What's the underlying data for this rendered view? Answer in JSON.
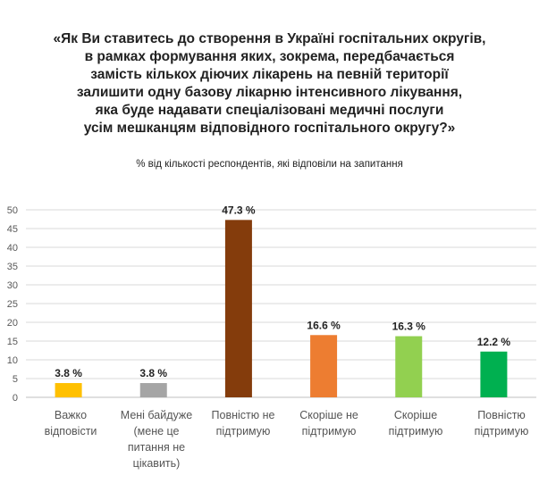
{
  "chart_data": {
    "type": "bar",
    "title_lines": [
      "«Як Ви ставитесь до створення в Україні госпітальних округів,",
      "в рамках формування яких, зокрема, передбачається",
      "замість кількох діючих лікарень на певній території",
      "залишити одну базову лікарню інтенсивного лікування,",
      "яка буде надавати спеціалізовані медичні послуги",
      "усім мешканцям відповідного госпітального округу?»"
    ],
    "subtitle": "% від кількості респондентів, які відповіли на запитання",
    "categories": [
      "Важко відповісти",
      "Мені байдуже (мене це питання не цікавить)",
      "Повністю не підтримую",
      "Скоріше не підтримую",
      "Скоріше підтримую",
      "Повністю підтримую"
    ],
    "values": [
      3.8,
      3.8,
      47.3,
      16.6,
      16.3,
      12.2
    ],
    "data_labels": [
      "3.8 %",
      "3.8 %",
      "47.3 %",
      "16.6 %",
      "16.3 %",
      "12.2 %"
    ],
    "bar_colors": [
      "#FFC000",
      "#A5A5A5",
      "#843C0C",
      "#ED7D31",
      "#92D050",
      "#00B050"
    ],
    "yticks": [
      "0",
      "5",
      "10",
      "15",
      "20",
      "25",
      "30",
      "35",
      "40",
      "45",
      "50"
    ],
    "ylim": [
      0,
      50
    ],
    "grid": true,
    "legend": "none"
  }
}
